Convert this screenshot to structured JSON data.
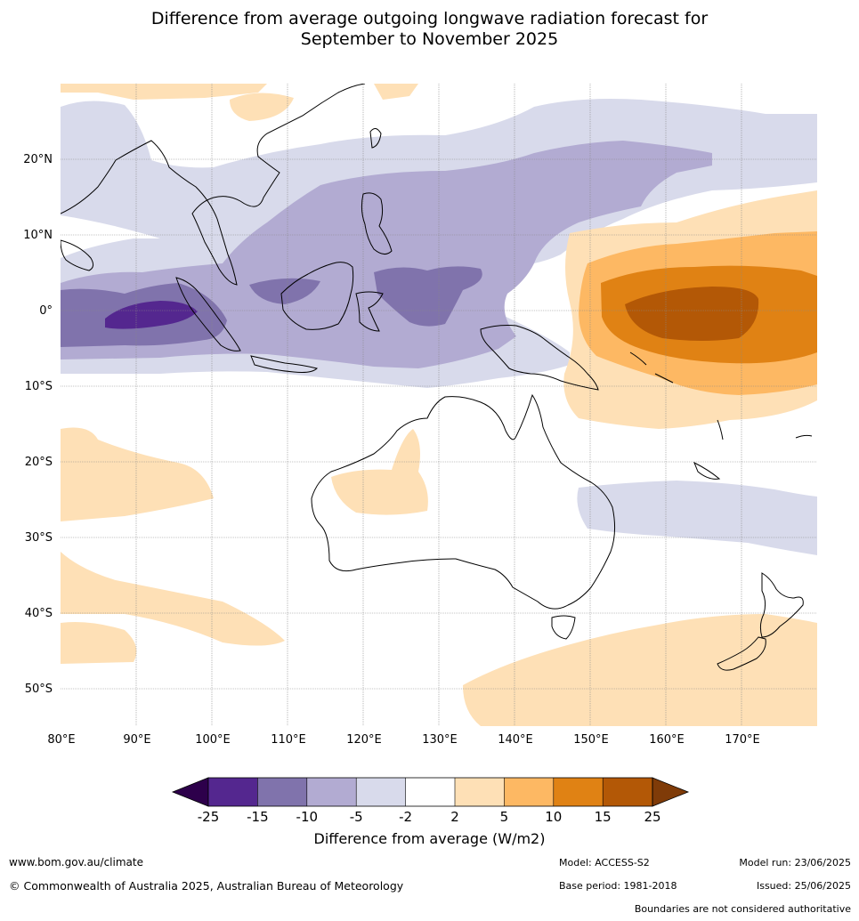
{
  "title_line1": "Difference from average outgoing longwave radiation forecast for",
  "title_line2": "September to November 2025",
  "map": {
    "lon_range": [
      80,
      180
    ],
    "lat_range": [
      -55,
      30
    ],
    "lon_ticks": [
      "80°E",
      "90°E",
      "100°E",
      "110°E",
      "120°E",
      "130°E",
      "140°E",
      "150°E",
      "160°E",
      "170°E"
    ],
    "lat_ticks": [
      "20°N",
      "10°N",
      "0°",
      "10°S",
      "20°S",
      "30°S",
      "40°S",
      "50°S"
    ],
    "lon_tick_values": [
      80,
      90,
      100,
      110,
      120,
      130,
      140,
      150,
      160,
      170
    ],
    "lat_tick_values": [
      20,
      10,
      0,
      -10,
      -20,
      -30,
      -40,
      -50
    ],
    "land_outline": "#000000",
    "grid_color": "#888888"
  },
  "colorbar": {
    "title": "Difference from average (W/m2)",
    "ticks": [
      "-25",
      "-15",
      "-10",
      "-5",
      "-2",
      "2",
      "5",
      "10",
      "15",
      "25"
    ],
    "colors": [
      "#54278f",
      "#8073ac",
      "#b2abd2",
      "#d8daeb",
      "#ffffff",
      "#fee0b6",
      "#fdb863",
      "#e08214",
      "#b35806"
    ],
    "extend_low_color": "#2d004b",
    "extend_high_color": "#7f3b08"
  },
  "footer": {
    "website": "www.bom.gov.au/climate",
    "copyright": "© Commonwealth of Australia 2025, Australian Bureau of Meteorology",
    "model": "Model: ACCESS-S2",
    "model_run": "Model run: 23/06/2025",
    "base_period": "Base period: 1981-2018",
    "issued": "Issued: 25/06/2025",
    "disclaimer": "Boundaries are not considered authoritative"
  }
}
